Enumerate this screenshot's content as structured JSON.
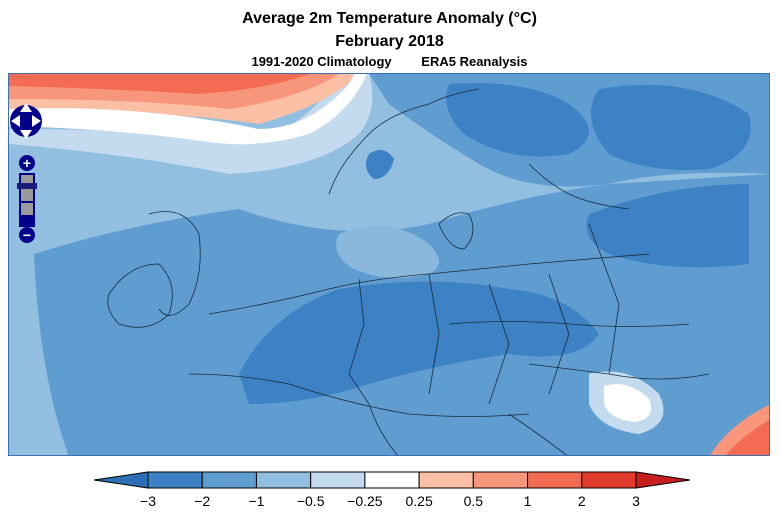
{
  "title": "Average 2m Temperature Anomaly (°C)",
  "period": "February 2018",
  "climatology": "1991-2020 Climatology",
  "dataset": "ERA5 Reanalysis",
  "map_controls": {
    "pan": [
      "pan-up",
      "pan-left",
      "pan-right",
      "pan-down"
    ],
    "zoom_in": "+",
    "zoom_out": "−"
  },
  "colorbar": {
    "ticks": [
      "−3",
      "−2",
      "−1",
      "−0.5",
      "−0.25",
      "0.25",
      "0.5",
      "1",
      "2",
      "3"
    ],
    "colors": [
      "#2c6fb7",
      "#3d82c4",
      "#5f9dd1",
      "#92bfe0",
      "#c4dbef",
      "#ffffff",
      "#fbbfa5",
      "#f7967a",
      "#f26b52",
      "#e23b2c",
      "#c81e1e"
    ]
  }
}
